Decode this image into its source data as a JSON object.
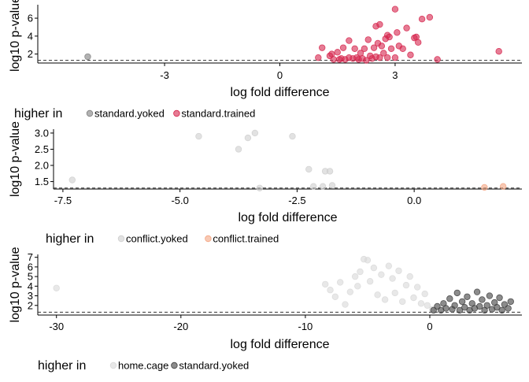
{
  "chart_data": [
    {
      "type": "scatter",
      "xlabel": "log fold difference",
      "ylabel": "log10 p-value",
      "xlim": [
        -6.3,
        6.3
      ],
      "ylim": [
        1.0,
        7.5
      ],
      "xticks": [
        -3,
        0,
        3
      ],
      "yticks": [
        2,
        4,
        6
      ],
      "threshold": 1.3,
      "legend": {
        "title": "higher in",
        "position": "bottom-left"
      },
      "series": [
        {
          "name": "standard.yoked",
          "color": "#7f7f7f",
          "points": [
            [
              -5.0,
              1.7
            ]
          ]
        },
        {
          "name": "standard.trained",
          "color": "#d6244c",
          "points": [
            [
              1.0,
              1.6
            ],
            [
              1.1,
              2.7
            ],
            [
              1.3,
              1.8
            ],
            [
              1.35,
              2.0
            ],
            [
              1.4,
              1.4
            ],
            [
              1.5,
              2.2
            ],
            [
              1.55,
              1.4
            ],
            [
              1.6,
              1.5
            ],
            [
              1.65,
              2.7
            ],
            [
              1.7,
              1.4
            ],
            [
              1.8,
              3.5
            ],
            [
              1.8,
              1.6
            ],
            [
              1.9,
              1.5
            ],
            [
              1.95,
              2.6
            ],
            [
              2.0,
              1.6
            ],
            [
              2.05,
              1.4
            ],
            [
              2.1,
              2.1
            ],
            [
              2.15,
              1.5
            ],
            [
              2.2,
              2.6
            ],
            [
              2.25,
              1.3
            ],
            [
              2.3,
              3.6
            ],
            [
              2.35,
              1.8
            ],
            [
              2.4,
              1.5
            ],
            [
              2.45,
              2.7
            ],
            [
              2.5,
              5.1
            ],
            [
              2.5,
              1.7
            ],
            [
              2.55,
              3.2
            ],
            [
              2.6,
              1.6
            ],
            [
              2.6,
              5.3
            ],
            [
              2.65,
              2.9
            ],
            [
              2.7,
              2.1
            ],
            [
              2.75,
              3.7
            ],
            [
              2.8,
              4.1
            ],
            [
              2.8,
              1.6
            ],
            [
              2.85,
              3.9
            ],
            [
              2.9,
              2.6
            ],
            [
              3.0,
              7.0
            ],
            [
              3.0,
              1.6
            ],
            [
              3.05,
              4.4
            ],
            [
              3.1,
              2.9
            ],
            [
              3.2,
              2.6
            ],
            [
              3.3,
              4.9
            ],
            [
              3.4,
              1.9
            ],
            [
              3.5,
              3.8
            ],
            [
              3.55,
              3.9
            ],
            [
              3.6,
              3.3
            ],
            [
              3.7,
              5.9
            ],
            [
              3.9,
              6.1
            ],
            [
              4.1,
              1.4
            ],
            [
              5.7,
              2.3
            ]
          ]
        }
      ]
    },
    {
      "type": "scatter",
      "xlabel": "log fold difference",
      "ylabel": "log10 p-value",
      "xlim": [
        -7.7,
        2.3
      ],
      "ylim": [
        1.27,
        3.12
      ],
      "xticks": [
        -7.5,
        -5.0,
        -2.5,
        0.0
      ],
      "xtick_labels": [
        "-7.5",
        "-5.0",
        "-2.5",
        "0.0"
      ],
      "yticks": [
        1.5,
        2.0,
        2.5,
        3.0
      ],
      "ytick_labels": [
        "1.5",
        "2.0",
        "2.5",
        "3.0"
      ],
      "threshold": 1.3,
      "legend": {
        "title": "higher in",
        "position": "bottom-left"
      },
      "series": [
        {
          "name": "conflict.yoked",
          "color": "#cfcfcf",
          "points": [
            [
              -7.3,
              1.55
            ],
            [
              -4.6,
              2.9
            ],
            [
              -3.75,
              2.5
            ],
            [
              -3.55,
              2.85
            ],
            [
              -3.4,
              3.0
            ],
            [
              -3.3,
              1.3
            ],
            [
              -2.6,
              2.9
            ],
            [
              -2.25,
              1.88
            ],
            [
              -2.15,
              1.35
            ],
            [
              -1.95,
              1.35
            ],
            [
              -1.9,
              1.82
            ],
            [
              -1.8,
              1.82
            ],
            [
              -1.75,
              1.38
            ]
          ]
        },
        {
          "name": "conflict.trained",
          "color": "#f4a582",
          "points": [
            [
              1.5,
              1.32
            ],
            [
              1.9,
              1.35
            ]
          ]
        }
      ]
    },
    {
      "type": "scatter",
      "xlabel": "log fold difference",
      "ylabel": "log10 p-value",
      "xlim": [
        -31.5,
        7.4
      ],
      "ylim": [
        1.0,
        7.3
      ],
      "xticks": [
        -30,
        -20,
        -10,
        0
      ],
      "yticks": [
        2,
        3,
        4,
        5,
        6,
        7
      ],
      "threshold": 1.3,
      "legend": {
        "title": "higher in",
        "position": "bottom-left"
      },
      "series": [
        {
          "name": "home.cage",
          "color": "#d9d9d9",
          "points": [
            [
              -30.0,
              3.8
            ],
            [
              -8.4,
              4.2
            ],
            [
              -8.0,
              3.6
            ],
            [
              -7.6,
              2.9
            ],
            [
              -7.2,
              4.4
            ],
            [
              -6.8,
              2.1
            ],
            [
              -6.4,
              3.4
            ],
            [
              -6.0,
              5.0
            ],
            [
              -5.8,
              4.0
            ],
            [
              -5.6,
              5.5
            ],
            [
              -5.3,
              6.8
            ],
            [
              -5.0,
              6.7
            ],
            [
              -4.8,
              4.5
            ],
            [
              -4.5,
              5.9
            ],
            [
              -4.2,
              3.1
            ],
            [
              -3.9,
              5.2
            ],
            [
              -3.6,
              2.6
            ],
            [
              -3.3,
              6.1
            ],
            [
              -3.0,
              4.8
            ],
            [
              -2.8,
              3.3
            ],
            [
              -2.5,
              5.6
            ],
            [
              -2.2,
              2.4
            ],
            [
              -1.9,
              4.1
            ],
            [
              -1.6,
              5.0
            ],
            [
              -1.3,
              2.8
            ],
            [
              -1.0,
              3.9
            ],
            [
              -0.7,
              2.2
            ],
            [
              -0.4,
              3.2
            ],
            [
              -0.2,
              2.0
            ],
            [
              0.2,
              1.6
            ]
          ]
        },
        {
          "name": "standard.yoked",
          "color": "#404040",
          "points": [
            [
              0.3,
              1.5
            ],
            [
              0.6,
              1.9
            ],
            [
              0.9,
              1.5
            ],
            [
              1.1,
              2.2
            ],
            [
              1.3,
              1.7
            ],
            [
              1.6,
              2.7
            ],
            [
              1.8,
              1.6
            ],
            [
              2.0,
              2.0
            ],
            [
              2.2,
              3.3
            ],
            [
              2.4,
              1.5
            ],
            [
              2.6,
              2.4
            ],
            [
              2.8,
              1.8
            ],
            [
              3.0,
              2.9
            ],
            [
              3.2,
              1.5
            ],
            [
              3.4,
              2.2
            ],
            [
              3.6,
              1.7
            ],
            [
              3.8,
              3.4
            ],
            [
              4.0,
              1.9
            ],
            [
              4.2,
              2.6
            ],
            [
              4.4,
              1.5
            ],
            [
              4.6,
              2.0
            ],
            [
              4.8,
              3.0
            ],
            [
              5.0,
              1.6
            ],
            [
              5.2,
              2.3
            ],
            [
              5.4,
              1.8
            ],
            [
              5.6,
              2.8
            ],
            [
              5.8,
              1.5
            ],
            [
              6.0,
              2.1
            ],
            [
              6.3,
              1.7
            ],
            [
              6.5,
              2.4
            ]
          ]
        }
      ]
    }
  ]
}
